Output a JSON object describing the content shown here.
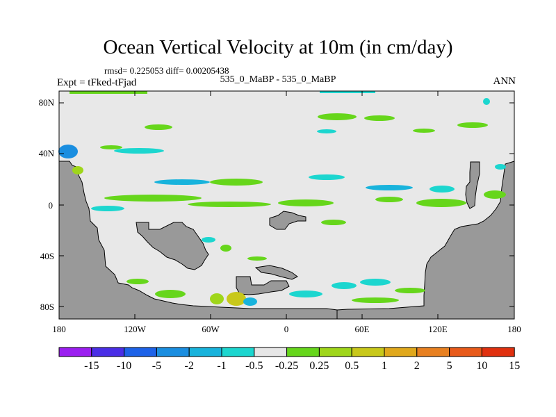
{
  "title": "Ocean Vertical Velocity at 10m (in cm/day)",
  "stats": "rmsd= 0.225053 diff= 0.00205438",
  "experiment": "Expt = tFked-tFjad",
  "comparison": "535_0_MaBP - 535_0_MaBP",
  "season": "ANN",
  "map": {
    "lat_ticks": [
      "80N",
      "40N",
      "0",
      "40S",
      "80S"
    ],
    "lon_ticks": [
      "180",
      "120W",
      "60W",
      "0",
      "60E",
      "120E",
      "180"
    ],
    "land_color": "#999999",
    "ocean_color": "#e8e8e8"
  },
  "colorbar": {
    "colors": [
      "#9b1ff0",
      "#4a2ee6",
      "#1d62e8",
      "#1a8ee0",
      "#18b3dc",
      "#1cd6cf",
      "#e6e6e6",
      "#66d61b",
      "#9fd61a",
      "#c8c81a",
      "#e0a81c",
      "#e88020",
      "#e85a1a",
      "#e0300f"
    ],
    "labels": [
      "-15",
      "-10",
      "-5",
      "-2",
      "-1",
      "-0.5",
      "-0.25",
      "0.25",
      "0.5",
      "1",
      "2",
      "5",
      "10",
      "15"
    ]
  }
}
